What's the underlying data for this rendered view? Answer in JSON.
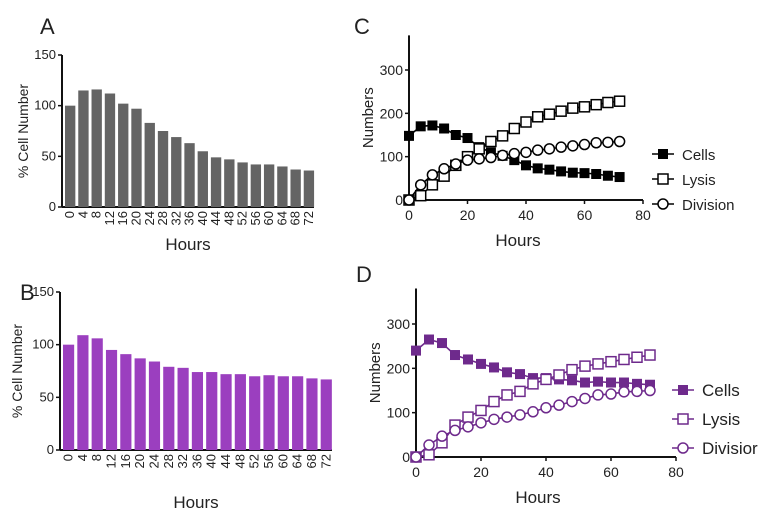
{
  "chart_data": [
    {
      "panel": "A",
      "type": "bar",
      "categories": [
        "0",
        "4",
        "8",
        "12",
        "16",
        "20",
        "24",
        "28",
        "32",
        "36",
        "40",
        "44",
        "48",
        "52",
        "56",
        "60",
        "64",
        "68",
        "72"
      ],
      "values": [
        100,
        115,
        116,
        112,
        102,
        97,
        83,
        75,
        69,
        63,
        55,
        49,
        47,
        44,
        42,
        42,
        40,
        37,
        36
      ],
      "xlabel": "Hours",
      "ylabel": "% Cell Number",
      "ylim": [
        0,
        150
      ],
      "yticks": [
        "0",
        "50",
        "100",
        "150"
      ],
      "color": "#646464"
    },
    {
      "panel": "B",
      "type": "bar",
      "categories": [
        "0",
        "4",
        "8",
        "12",
        "16",
        "20",
        "24",
        "28",
        "32",
        "36",
        "40",
        "44",
        "48",
        "52",
        "56",
        "60",
        "64",
        "68",
        "72"
      ],
      "values": [
        100,
        109,
        106,
        95,
        91,
        87,
        84,
        79,
        78,
        74,
        74,
        72,
        72,
        70,
        71,
        70,
        70,
        68,
        67
      ],
      "xlabel": "Hours",
      "ylabel": "% Cell Number",
      "ylim": [
        0,
        150
      ],
      "yticks": [
        "0",
        "50",
        "100",
        "150"
      ],
      "color": "#9b3fbf"
    },
    {
      "panel": "C",
      "type": "line",
      "x": [
        0,
        4,
        8,
        12,
        16,
        20,
        24,
        28,
        32,
        36,
        40,
        44,
        48,
        52,
        56,
        60,
        64,
        68,
        72
      ],
      "series": [
        {
          "name": "Cells",
          "marker": "filled-square",
          "values": [
            148,
            170,
            172,
            165,
            150,
            143,
            122,
            110,
            102,
            92,
            80,
            73,
            70,
            66,
            63,
            62,
            60,
            56,
            53
          ]
        },
        {
          "name": "Lysis",
          "marker": "open-square",
          "values": [
            0,
            10,
            35,
            55,
            80,
            100,
            118,
            135,
            148,
            165,
            180,
            192,
            198,
            205,
            212,
            215,
            220,
            225,
            228
          ]
        },
        {
          "name": "Division",
          "marker": "open-circle",
          "values": [
            0,
            35,
            58,
            72,
            83,
            92,
            95,
            98,
            103,
            107,
            110,
            115,
            118,
            122,
            125,
            128,
            132,
            133,
            135
          ]
        }
      ],
      "xlabel": "Hours",
      "ylabel": "Numbers",
      "xlim": [
        0,
        80
      ],
      "ylim": [
        0,
        380
      ],
      "xticks": [
        "0",
        "20",
        "40",
        "60",
        "80"
      ],
      "yticks": [
        "0",
        "100",
        "200",
        "300"
      ],
      "legend": "right",
      "color": "#000000"
    },
    {
      "panel": "D",
      "type": "line",
      "x": [
        0,
        4,
        8,
        12,
        16,
        20,
        24,
        28,
        32,
        36,
        40,
        44,
        48,
        52,
        56,
        60,
        64,
        68,
        72
      ],
      "series": [
        {
          "name": "Cells",
          "marker": "filled-square",
          "values": [
            240,
            265,
            257,
            230,
            220,
            210,
            202,
            191,
            187,
            178,
            178,
            175,
            173,
            168,
            170,
            168,
            168,
            165,
            163
          ]
        },
        {
          "name": "Lysis",
          "marker": "open-square",
          "values": [
            0,
            5,
            32,
            72,
            90,
            105,
            125,
            140,
            148,
            165,
            175,
            185,
            197,
            205,
            210,
            215,
            220,
            225,
            230
          ]
        },
        {
          "name": "Division",
          "marker": "open-circle",
          "values": [
            0,
            27,
            47,
            60,
            68,
            77,
            85,
            90,
            95,
            102,
            111,
            117,
            125,
            132,
            140,
            142,
            147,
            148,
            150
          ]
        }
      ],
      "legend_labels": [
        "Cells",
        "Lysis",
        "Divisior"
      ],
      "xlabel": "Hours",
      "ylabel": "Numbers",
      "xlim": [
        0,
        80
      ],
      "ylim": [
        0,
        380
      ],
      "xticks": [
        "0",
        "20",
        "40",
        "60",
        "80"
      ],
      "yticks": [
        "0",
        "100",
        "200",
        "300"
      ],
      "legend": "right",
      "color": "#6e2a8c"
    }
  ]
}
